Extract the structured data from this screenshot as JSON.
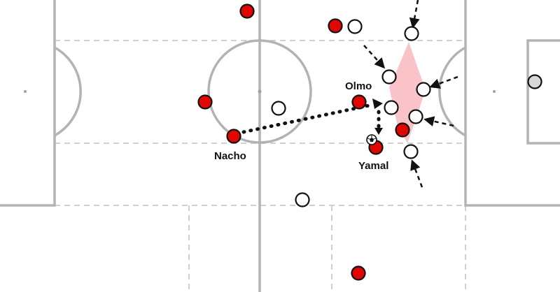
{
  "colors": {
    "pitch_background": "#ffffff",
    "pitch_lines": "#b3b3b3",
    "zone_lines": "#d0d0d0",
    "team_red": "#e10600",
    "team_white": "#ffffff",
    "goalkeeper": "#d9d9d9",
    "arrow": "#111111",
    "zone_highlight": "#f8b9bd"
  },
  "labels": {
    "nacho": "Nacho",
    "olmo": "Olmo",
    "yamal": "Yamal"
  },
  "icons": {
    "ball": "soccer-ball-icon"
  }
}
